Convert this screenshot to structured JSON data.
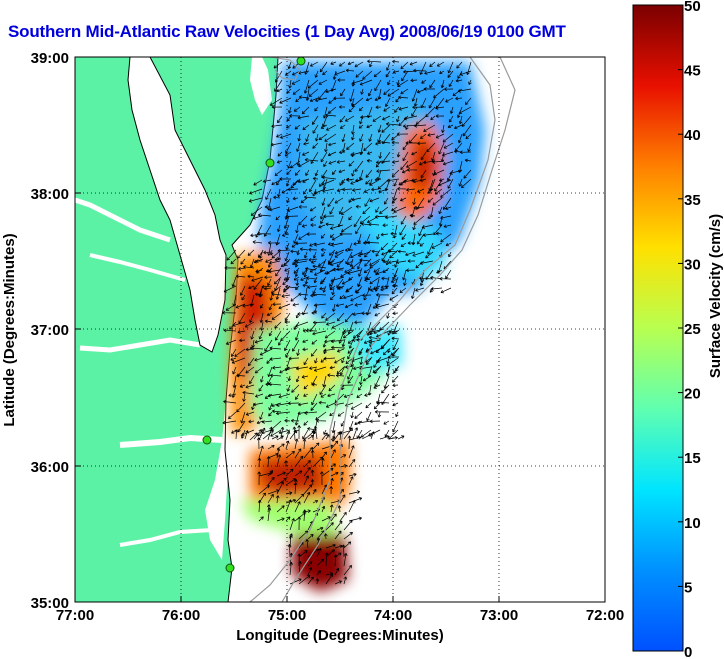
{
  "title": "Southern Mid-Atlantic Raw Velocities (1 Day Avg) 2008/06/19 0100 GMT",
  "map": {
    "xlabel": "Longitude (Degrees:Minutes)",
    "ylabel": "Latitude (Degrees:Minutes)",
    "x_ticks": [
      "77:00",
      "76:00",
      "75:00",
      "74:00",
      "73:00",
      "72:00"
    ],
    "y_ticks": [
      "39:00",
      "38:00",
      "37:00",
      "36:00",
      "35:00"
    ],
    "land_color": "#5cf2a6",
    "grid": "dotted"
  },
  "colorbar": {
    "label": "Surface Velocity (cm/s)",
    "ticks": [
      "50",
      "45",
      "40",
      "35",
      "30",
      "25",
      "20",
      "15",
      "10",
      "5",
      "0"
    ],
    "colormap": "jet",
    "range": [
      0,
      50
    ]
  },
  "chart_data": {
    "type": "heatmap",
    "title": "Southern Mid-Atlantic Raw Velocities (1 Day Avg) 2008/06/19 0100 GMT",
    "xlabel": "Longitude (Degrees:Minutes)",
    "ylabel": "Latitude (Degrees:Minutes)",
    "xlim": [
      "77:00",
      "72:00"
    ],
    "ylim": [
      "35:00",
      "39:00"
    ],
    "colorbar_label": "Surface Velocity (cm/s)",
    "value_range": [
      0,
      50
    ],
    "regions": [
      {
        "lon": "74:40",
        "lat": "38:30",
        "velocity": 8
      },
      {
        "lon": "73:45",
        "lat": "38:20",
        "velocity": 40
      },
      {
        "lon": "75:10",
        "lat": "36:55",
        "velocity": 36
      },
      {
        "lon": "74:30",
        "lat": "37:30",
        "velocity": 10
      },
      {
        "lon": "74:50",
        "lat": "36:00",
        "velocity": 38
      },
      {
        "lon": "74:45",
        "lat": "35:20",
        "velocity": 48
      },
      {
        "lon": "74:50",
        "lat": "36:25",
        "velocity": 20
      }
    ]
  }
}
